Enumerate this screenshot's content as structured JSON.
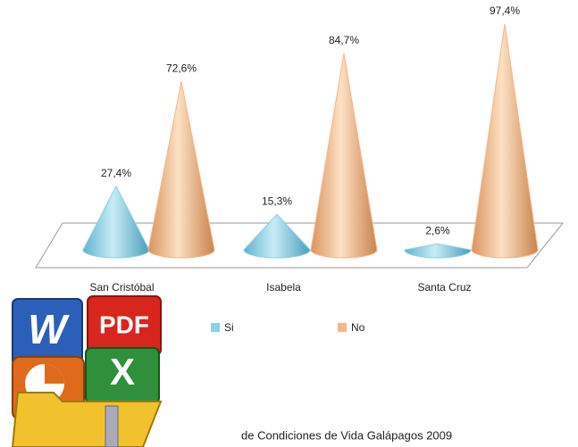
{
  "chart_data": {
    "type": "cone3d",
    "categories": [
      "San Cristóbal",
      "Isabela",
      "Santa Cruz"
    ],
    "series": [
      {
        "name": "Si",
        "color": "#8ed0e6",
        "values": [
          27.4,
          15.3,
          2.6
        ],
        "value_labels": [
          "27,4%",
          "15,3%",
          "2,6%"
        ]
      },
      {
        "name": "No",
        "color": "#f5b886",
        "values": [
          72.6,
          84.7,
          97.4
        ],
        "value_labels": [
          "72,6%",
          "84,7%",
          "97,4%"
        ]
      }
    ],
    "source_note": "de Condiciones de Vida Galápagos 2009"
  },
  "overlay_icon": {
    "word": "W",
    "pdf": "PDF",
    "excel": "X"
  }
}
